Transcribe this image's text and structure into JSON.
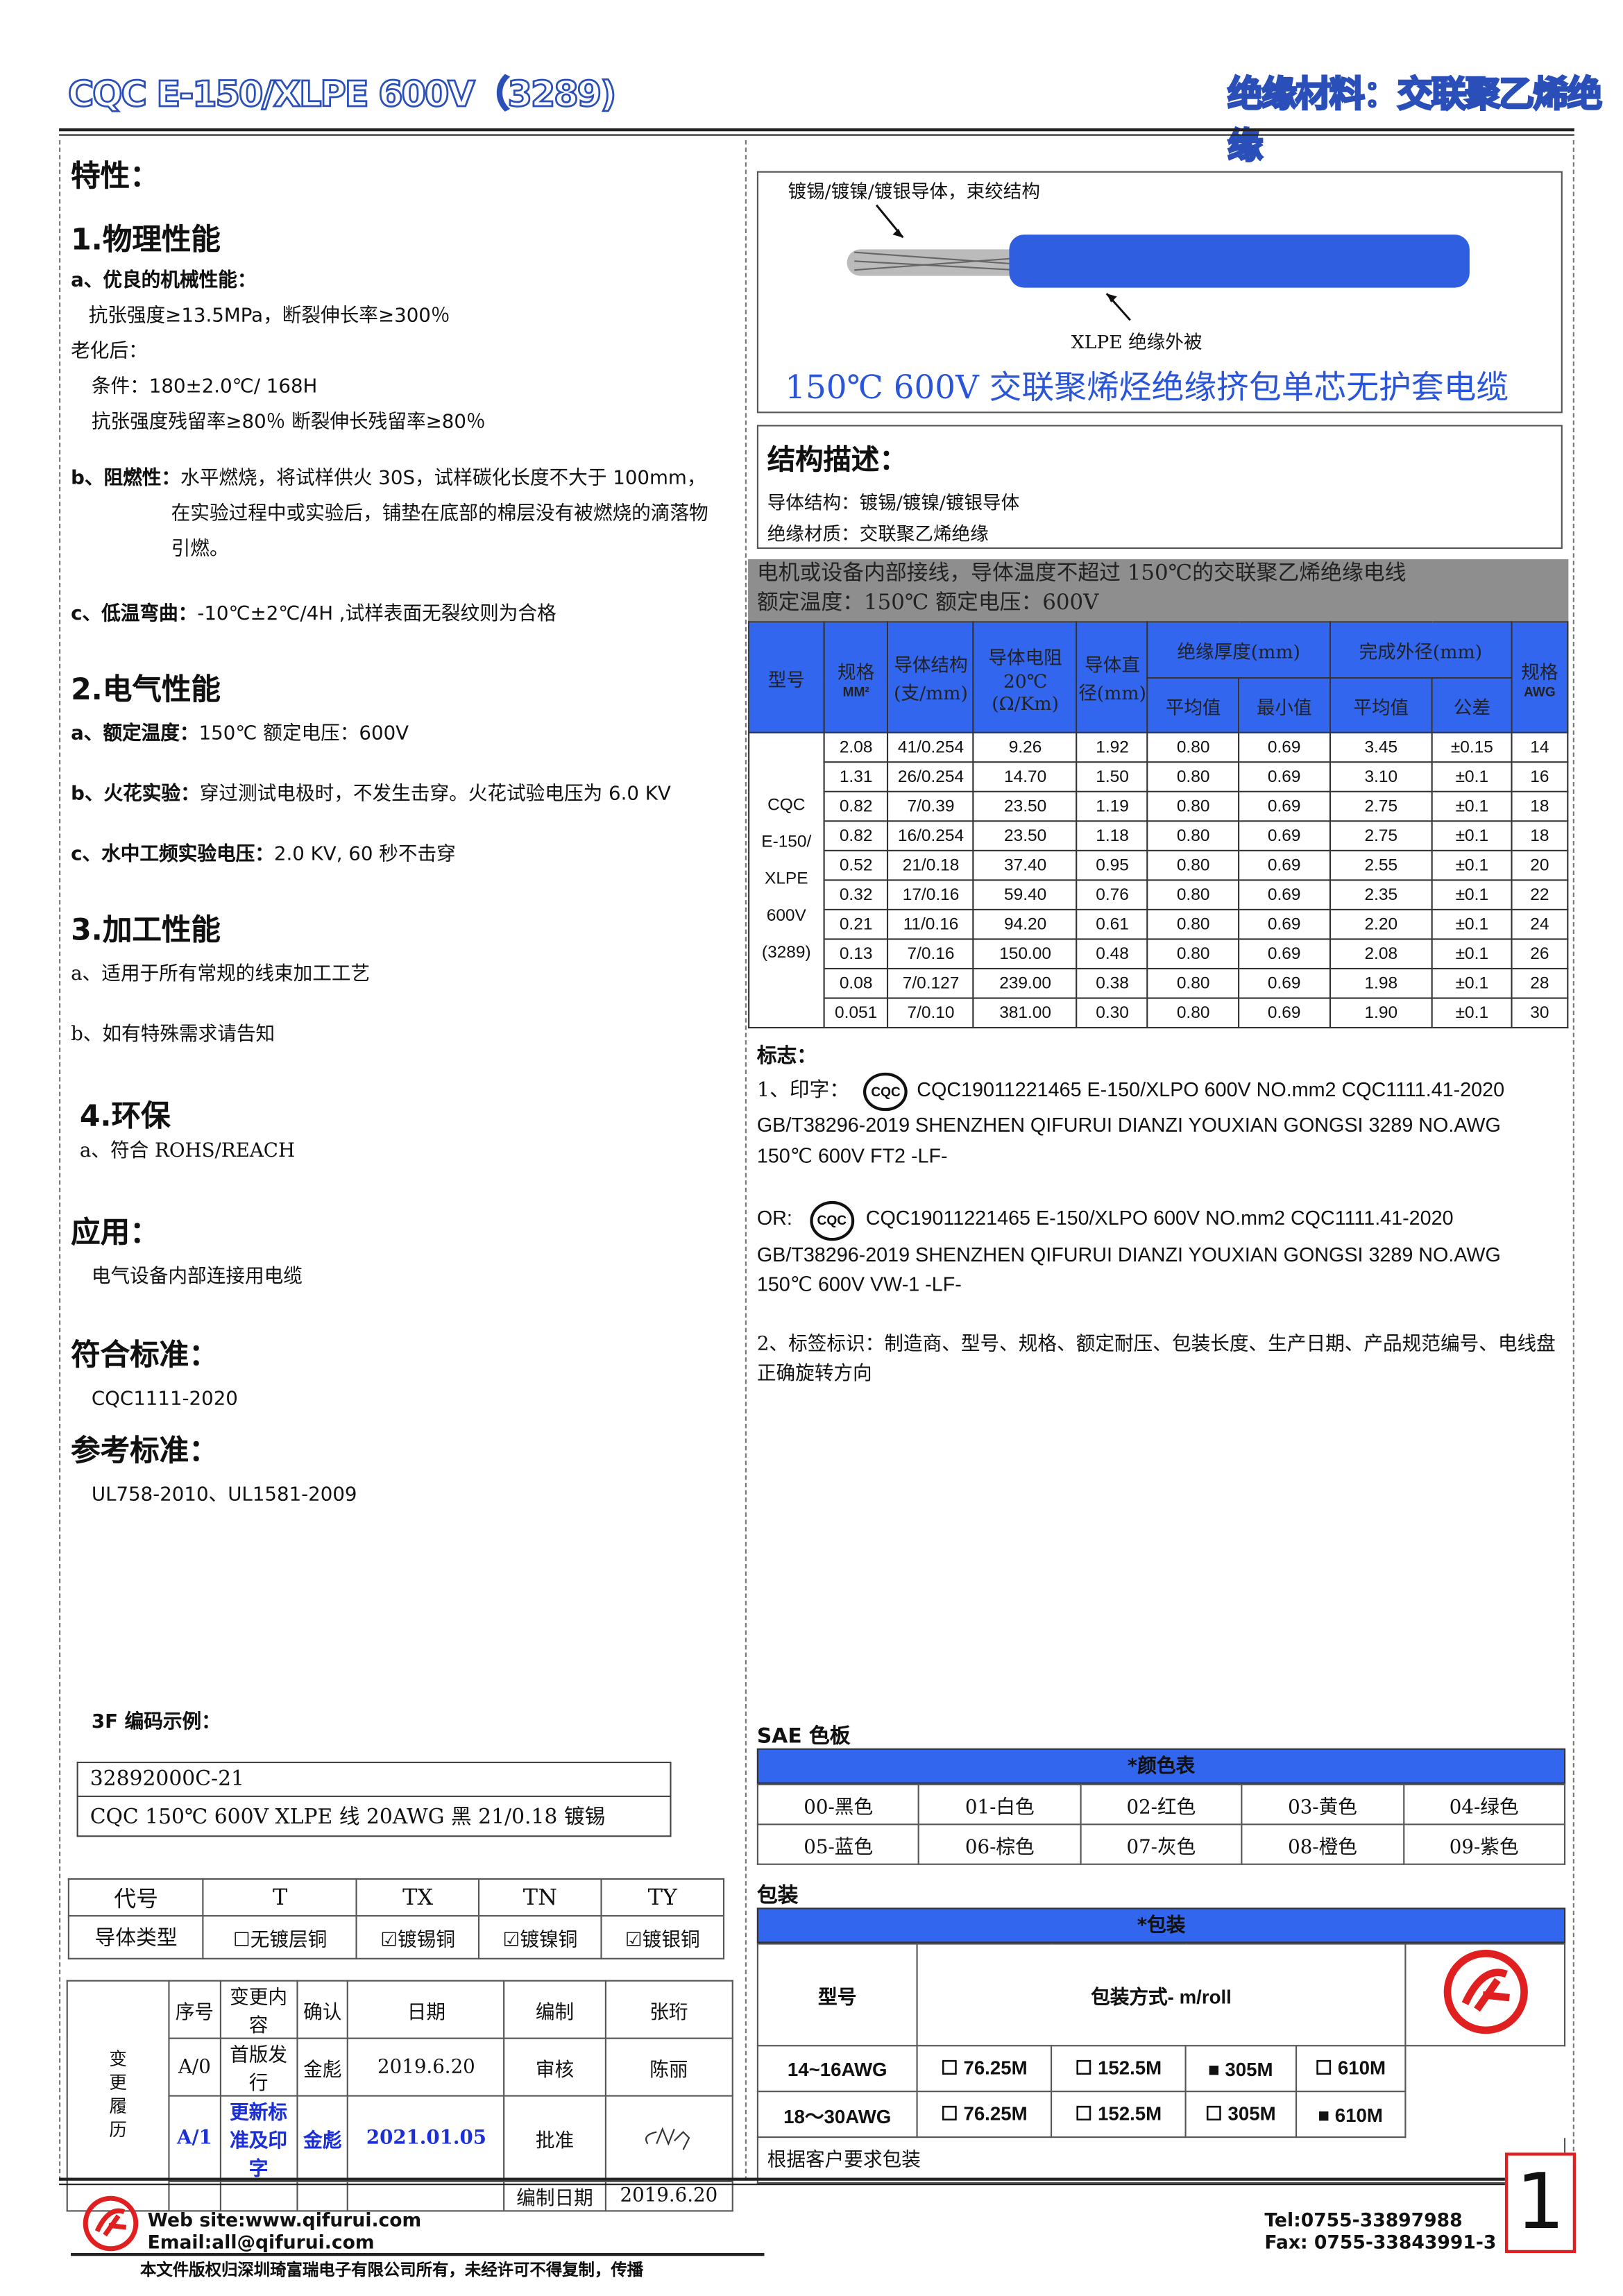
{
  "header": {
    "left": "CQC E-150/XLPE 600V（3289)",
    "right": "绝缘材料：交联聚乙烯绝缘"
  },
  "left": {
    "features_title": "特性：",
    "s1": {
      "title": "1.物理性能",
      "a_label": "a、优良的机械性能：",
      "a1": "抗张强度≥13.5MPa，断裂伸长率≥300％",
      "aging": "老化后：",
      "cond": "条件：180±2.0℃/ 168H",
      "retain": "抗张强度残留率≥80％  断裂伸长残留率≥80％",
      "b_label": "b、阻燃性：",
      "b1": "水平燃烧，将试样供火 30S，试样碳化长度不大于 100mm，",
      "b2": "在实验过程中或实验后，铺垫在底部的棉层没有被燃烧的滴落物",
      "b3": "引燃。",
      "c_label": "c、低温弯曲：",
      "c1": "-10℃±2℃/4H ,试样表面无裂纹则为合格"
    },
    "s2": {
      "title": "2.电气性能",
      "a_label": "a、额定温度：",
      "a1": "150℃    额定电压：600V",
      "b_label": "b、火花实验：",
      "b1": "穿过测试电极时，不发生击穿。火花试验电压为 6.0 KV",
      "c_label": "c、水中工频实验电压：",
      "c1": "2.0 KV, 60 秒不击穿"
    },
    "s3": {
      "title": "3.加工性能",
      "a": "a、适用于所有常规的线束加工工艺",
      "b": "b、如有特殊需求请告知"
    },
    "s4": {
      "title": "4.环保",
      "a": "a、符合 ROHS/REACH"
    },
    "app": {
      "title": "应用：",
      "text": "电气设备内部连接用电缆"
    },
    "std": {
      "title": "符合标准：",
      "text": "CQC1111-2020"
    },
    "ref": {
      "title": "参考标准：",
      "text": "UL758-2010、UL1581-2009"
    },
    "code": {
      "title": "3F 编码示例：",
      "line1": "32892000C-21",
      "line2": "CQC 150℃  600V XLPE 线  20AWG  黑  21/0.18 镀锡"
    },
    "conductor": {
      "headers": [
        "代号",
        "T",
        "TX",
        "TN",
        "TY"
      ],
      "row_label": "导体类型",
      "types": [
        {
          "mark": "☐",
          "label": "无镀层铜"
        },
        {
          "mark": "☑",
          "label": "镀锡铜"
        },
        {
          "mark": "☑",
          "label": "镀镍铜"
        },
        {
          "mark": "☑",
          "label": "镀银铜"
        }
      ]
    },
    "history": {
      "side": "变更履历",
      "h": [
        "序号",
        "变更内容",
        "确认",
        "日期",
        "编制",
        "张珩"
      ],
      "r1": [
        "A/0",
        "首版发行",
        "金彪",
        "2019.6.20",
        "审核",
        "陈丽"
      ],
      "r2": [
        "A/1",
        "更新标准及印字",
        "金彪",
        "2021.01.05",
        "批准"
      ],
      "r3": [
        "编制日期",
        "2019.6.20"
      ]
    }
  },
  "right": {
    "cable": {
      "conductor_label": "镀锡/镀镍/镀银导体，束绞结构",
      "insulation_label": "XLPE  绝缘外被",
      "title": "150℃  600V 交联聚烯烃绝缘挤包单芯无护套电缆",
      "cable_color": "#2f5fe0"
    },
    "structure": {
      "title": "结构描述：",
      "l1": "导体结构：镀锡/镀镍/镀银导体",
      "l2": "绝缘材质：交联聚乙烯绝缘"
    },
    "grey": {
      "l1": "电机或设备内部接线，导体温度不超过 150℃的交联聚乙烯绝缘电线",
      "l2": "额定温度：150℃  额定电压：600V"
    },
    "table": {
      "h": {
        "model": "型号",
        "spec": "规格",
        "spec_unit": "MM²",
        "cond": "导体结构(支/mm)",
        "res": "导体电阻20℃(Ω/Km)",
        "dia": "导体直径(mm)",
        "ins": "绝缘厚度(mm)",
        "od": "完成外径(mm)",
        "avg": "平均值",
        "min": "最小值",
        "tol": "公差",
        "awg": "规格",
        "awg_unit": "AWG"
      },
      "model": [
        "CQC",
        "E-150/",
        "XLPE",
        "600V",
        "(3289)"
      ],
      "rows": [
        [
          "2.08",
          "41/0.254",
          "9.26",
          "1.92",
          "0.80",
          "0.69",
          "3.45",
          "±0.15",
          "14"
        ],
        [
          "1.31",
          "26/0.254",
          "14.70",
          "1.50",
          "0.80",
          "0.69",
          "3.10",
          "±0.1",
          "16"
        ],
        [
          "0.82",
          "7/0.39",
          "23.50",
          "1.19",
          "0.80",
          "0.69",
          "2.75",
          "±0.1",
          "18"
        ],
        [
          "0.82",
          "16/0.254",
          "23.50",
          "1.18",
          "0.80",
          "0.69",
          "2.75",
          "±0.1",
          "18"
        ],
        [
          "0.52",
          "21/0.18",
          "37.40",
          "0.95",
          "0.80",
          "0.69",
          "2.55",
          "±0.1",
          "20"
        ],
        [
          "0.32",
          "17/0.16",
          "59.40",
          "0.76",
          "0.80",
          "0.69",
          "2.35",
          "±0.1",
          "22"
        ],
        [
          "0.21",
          "11/0.16",
          "94.20",
          "0.61",
          "0.80",
          "0.69",
          "2.20",
          "±0.1",
          "24"
        ],
        [
          "0.13",
          "7/0.16",
          "150.00",
          "0.48",
          "0.80",
          "0.69",
          "2.08",
          "±0.1",
          "26"
        ],
        [
          "0.08",
          "7/0.127",
          "239.00",
          "0.38",
          "0.80",
          "0.69",
          "1.98",
          "±0.1",
          "28"
        ],
        [
          "0.051",
          "7/0.10",
          "381.00",
          "0.30",
          "0.80",
          "0.69",
          "1.90",
          "±0.1",
          "30"
        ]
      ]
    },
    "mark": {
      "title": "标志：",
      "p1a": "1、印字：",
      "p1b": "CQC19011221465  E-150/XLPO  600V  NO.mm2  CQC1111.41-2020",
      "p1c": "GB/T38296-2019 SHENZHEN QIFURUI DIANZI YOUXIAN GONGSI      3289 NO.AWG",
      "p1d": "150℃  600V FT2 -LF-",
      "p2a": "OR:",
      "p2b": "CQC19011221465    E-150/XLPO    600V    NO.mm2    CQC1111.41-2020",
      "p2c": "GB/T38296-2019 SHENZHEN QIFURUI DIANZI YOUXIAN GONGSI      3289 NO.AWG",
      "p2d": "150℃  600V VW-1 -LF-",
      "logo": "CQC",
      "p3": "2、标签标识：制造商、型号、规格、额定耐压、包装长度、生产日期、产品规范编号、电线盘正确旋转方向"
    },
    "sae": {
      "title": "SAE 色板",
      "bar": "*颜色表",
      "colors": [
        "00-黑色",
        "01-白色",
        "02-红色",
        "03-黄色",
        "04-绿色",
        "05-蓝色",
        "06-棕色",
        "07-灰色",
        "08-橙色",
        "09-紫色"
      ]
    },
    "pack": {
      "title": "包装",
      "bar": "*包装",
      "h1": "型号",
      "h2": "包装方式- m/roll",
      "rows": [
        {
          "model": "14~16AWG",
          "opts": [
            [
              "☐",
              "76.25M"
            ],
            [
              "☐",
              "152.5M"
            ],
            [
              "■",
              "305M"
            ],
            [
              "☐",
              "610M"
            ]
          ]
        },
        {
          "model": "18～30AWG",
          "opts": [
            [
              "☐",
              "76.25M"
            ],
            [
              "☐",
              "152.5M"
            ],
            [
              "☐",
              "305M"
            ],
            [
              "■",
              "610M"
            ]
          ]
        }
      ],
      "note": "根据客户要求包装"
    }
  },
  "footer": {
    "web": "Web site:www.qifurui.com",
    "email": "Email:all@qifurui.com",
    "tel": "Tel:0755-33897988",
    "fax": "Fax: 0755-33843991-3",
    "copyright": "本文件版权归深圳琦富瑞电子有限公司所有，未经许可不得复制，传播",
    "page": "1",
    "brand_color": "#e02020"
  }
}
